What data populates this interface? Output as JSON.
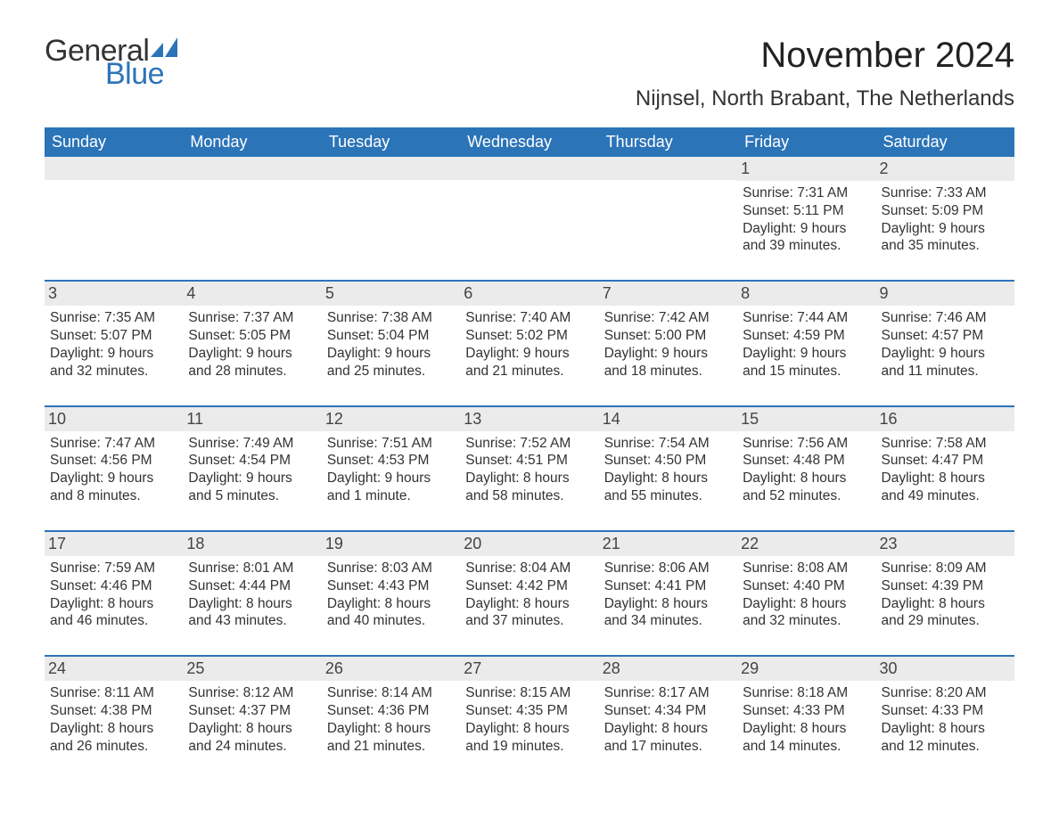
{
  "logo": {
    "text1": "General",
    "text2": "Blue",
    "icon_color": "#2b74b8"
  },
  "title": "November 2024",
  "location": "Nijnsel, North Brabant, The Netherlands",
  "colors": {
    "header_bg": "#2b74b8",
    "header_text": "#ffffff",
    "daynum_bg": "#ebebeb",
    "week_border": "#2b74b8",
    "body_text": "#333333",
    "background": "#ffffff"
  },
  "typography": {
    "title_fontsize": 40,
    "location_fontsize": 24,
    "weekday_fontsize": 18,
    "daynum_fontsize": 18,
    "body_fontsize": 15.5,
    "font_family": "Arial"
  },
  "weekdays": [
    "Sunday",
    "Monday",
    "Tuesday",
    "Wednesday",
    "Thursday",
    "Friday",
    "Saturday"
  ],
  "weeks": [
    [
      {
        "empty": true
      },
      {
        "empty": true
      },
      {
        "empty": true
      },
      {
        "empty": true
      },
      {
        "empty": true
      },
      {
        "num": "1",
        "sunrise": "Sunrise: 7:31 AM",
        "sunset": "Sunset: 5:11 PM",
        "day1": "Daylight: 9 hours",
        "day2": "and 39 minutes."
      },
      {
        "num": "2",
        "sunrise": "Sunrise: 7:33 AM",
        "sunset": "Sunset: 5:09 PM",
        "day1": "Daylight: 9 hours",
        "day2": "and 35 minutes."
      }
    ],
    [
      {
        "num": "3",
        "sunrise": "Sunrise: 7:35 AM",
        "sunset": "Sunset: 5:07 PM",
        "day1": "Daylight: 9 hours",
        "day2": "and 32 minutes."
      },
      {
        "num": "4",
        "sunrise": "Sunrise: 7:37 AM",
        "sunset": "Sunset: 5:05 PM",
        "day1": "Daylight: 9 hours",
        "day2": "and 28 minutes."
      },
      {
        "num": "5",
        "sunrise": "Sunrise: 7:38 AM",
        "sunset": "Sunset: 5:04 PM",
        "day1": "Daylight: 9 hours",
        "day2": "and 25 minutes."
      },
      {
        "num": "6",
        "sunrise": "Sunrise: 7:40 AM",
        "sunset": "Sunset: 5:02 PM",
        "day1": "Daylight: 9 hours",
        "day2": "and 21 minutes."
      },
      {
        "num": "7",
        "sunrise": "Sunrise: 7:42 AM",
        "sunset": "Sunset: 5:00 PM",
        "day1": "Daylight: 9 hours",
        "day2": "and 18 minutes."
      },
      {
        "num": "8",
        "sunrise": "Sunrise: 7:44 AM",
        "sunset": "Sunset: 4:59 PM",
        "day1": "Daylight: 9 hours",
        "day2": "and 15 minutes."
      },
      {
        "num": "9",
        "sunrise": "Sunrise: 7:46 AM",
        "sunset": "Sunset: 4:57 PM",
        "day1": "Daylight: 9 hours",
        "day2": "and 11 minutes."
      }
    ],
    [
      {
        "num": "10",
        "sunrise": "Sunrise: 7:47 AM",
        "sunset": "Sunset: 4:56 PM",
        "day1": "Daylight: 9 hours",
        "day2": "and 8 minutes."
      },
      {
        "num": "11",
        "sunrise": "Sunrise: 7:49 AM",
        "sunset": "Sunset: 4:54 PM",
        "day1": "Daylight: 9 hours",
        "day2": "and 5 minutes."
      },
      {
        "num": "12",
        "sunrise": "Sunrise: 7:51 AM",
        "sunset": "Sunset: 4:53 PM",
        "day1": "Daylight: 9 hours",
        "day2": "and 1 minute."
      },
      {
        "num": "13",
        "sunrise": "Sunrise: 7:52 AM",
        "sunset": "Sunset: 4:51 PM",
        "day1": "Daylight: 8 hours",
        "day2": "and 58 minutes."
      },
      {
        "num": "14",
        "sunrise": "Sunrise: 7:54 AM",
        "sunset": "Sunset: 4:50 PM",
        "day1": "Daylight: 8 hours",
        "day2": "and 55 minutes."
      },
      {
        "num": "15",
        "sunrise": "Sunrise: 7:56 AM",
        "sunset": "Sunset: 4:48 PM",
        "day1": "Daylight: 8 hours",
        "day2": "and 52 minutes."
      },
      {
        "num": "16",
        "sunrise": "Sunrise: 7:58 AM",
        "sunset": "Sunset: 4:47 PM",
        "day1": "Daylight: 8 hours",
        "day2": "and 49 minutes."
      }
    ],
    [
      {
        "num": "17",
        "sunrise": "Sunrise: 7:59 AM",
        "sunset": "Sunset: 4:46 PM",
        "day1": "Daylight: 8 hours",
        "day2": "and 46 minutes."
      },
      {
        "num": "18",
        "sunrise": "Sunrise: 8:01 AM",
        "sunset": "Sunset: 4:44 PM",
        "day1": "Daylight: 8 hours",
        "day2": "and 43 minutes."
      },
      {
        "num": "19",
        "sunrise": "Sunrise: 8:03 AM",
        "sunset": "Sunset: 4:43 PM",
        "day1": "Daylight: 8 hours",
        "day2": "and 40 minutes."
      },
      {
        "num": "20",
        "sunrise": "Sunrise: 8:04 AM",
        "sunset": "Sunset: 4:42 PM",
        "day1": "Daylight: 8 hours",
        "day2": "and 37 minutes."
      },
      {
        "num": "21",
        "sunrise": "Sunrise: 8:06 AM",
        "sunset": "Sunset: 4:41 PM",
        "day1": "Daylight: 8 hours",
        "day2": "and 34 minutes."
      },
      {
        "num": "22",
        "sunrise": "Sunrise: 8:08 AM",
        "sunset": "Sunset: 4:40 PM",
        "day1": "Daylight: 8 hours",
        "day2": "and 32 minutes."
      },
      {
        "num": "23",
        "sunrise": "Sunrise: 8:09 AM",
        "sunset": "Sunset: 4:39 PM",
        "day1": "Daylight: 8 hours",
        "day2": "and 29 minutes."
      }
    ],
    [
      {
        "num": "24",
        "sunrise": "Sunrise: 8:11 AM",
        "sunset": "Sunset: 4:38 PM",
        "day1": "Daylight: 8 hours",
        "day2": "and 26 minutes."
      },
      {
        "num": "25",
        "sunrise": "Sunrise: 8:12 AM",
        "sunset": "Sunset: 4:37 PM",
        "day1": "Daylight: 8 hours",
        "day2": "and 24 minutes."
      },
      {
        "num": "26",
        "sunrise": "Sunrise: 8:14 AM",
        "sunset": "Sunset: 4:36 PM",
        "day1": "Daylight: 8 hours",
        "day2": "and 21 minutes."
      },
      {
        "num": "27",
        "sunrise": "Sunrise: 8:15 AM",
        "sunset": "Sunset: 4:35 PM",
        "day1": "Daylight: 8 hours",
        "day2": "and 19 minutes."
      },
      {
        "num": "28",
        "sunrise": "Sunrise: 8:17 AM",
        "sunset": "Sunset: 4:34 PM",
        "day1": "Daylight: 8 hours",
        "day2": "and 17 minutes."
      },
      {
        "num": "29",
        "sunrise": "Sunrise: 8:18 AM",
        "sunset": "Sunset: 4:33 PM",
        "day1": "Daylight: 8 hours",
        "day2": "and 14 minutes."
      },
      {
        "num": "30",
        "sunrise": "Sunrise: 8:20 AM",
        "sunset": "Sunset: 4:33 PM",
        "day1": "Daylight: 8 hours",
        "day2": "and 12 minutes."
      }
    ]
  ]
}
